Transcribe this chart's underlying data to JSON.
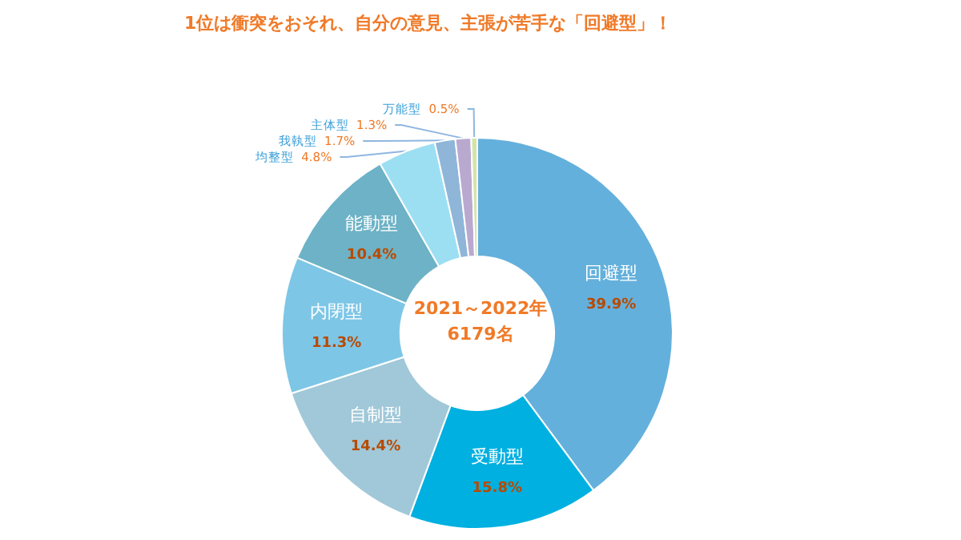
{
  "chart_data": {
    "type": "donut",
    "title": "1位は衝突をおそれ、自分の意見、主張が苦手な「回避型」！",
    "categories": [
      "回避型",
      "受動型",
      "自制型",
      "内閉型",
      "能動型",
      "均整型",
      "我執型",
      "主体型",
      "万能型"
    ],
    "values": [
      39.9,
      15.8,
      14.4,
      11.3,
      10.4,
      4.8,
      1.7,
      1.3,
      0.5
    ],
    "value_labels": [
      "39.9%",
      "15.8%",
      "14.4%",
      "11.3%",
      "10.4%",
      "4.8%",
      "1.7%",
      "1.3%",
      "0.5%"
    ],
    "colors": [
      "#64b0dc",
      "#00b0e0",
      "#a0c8d8",
      "#7ec6e6",
      "#6db2c6",
      "#9ddff2",
      "#8fb6d8",
      "#b9a9cf",
      "#d4e4a8"
    ],
    "annotations": [
      "2021～2022年",
      "6179名"
    ],
    "legend": false
  }
}
